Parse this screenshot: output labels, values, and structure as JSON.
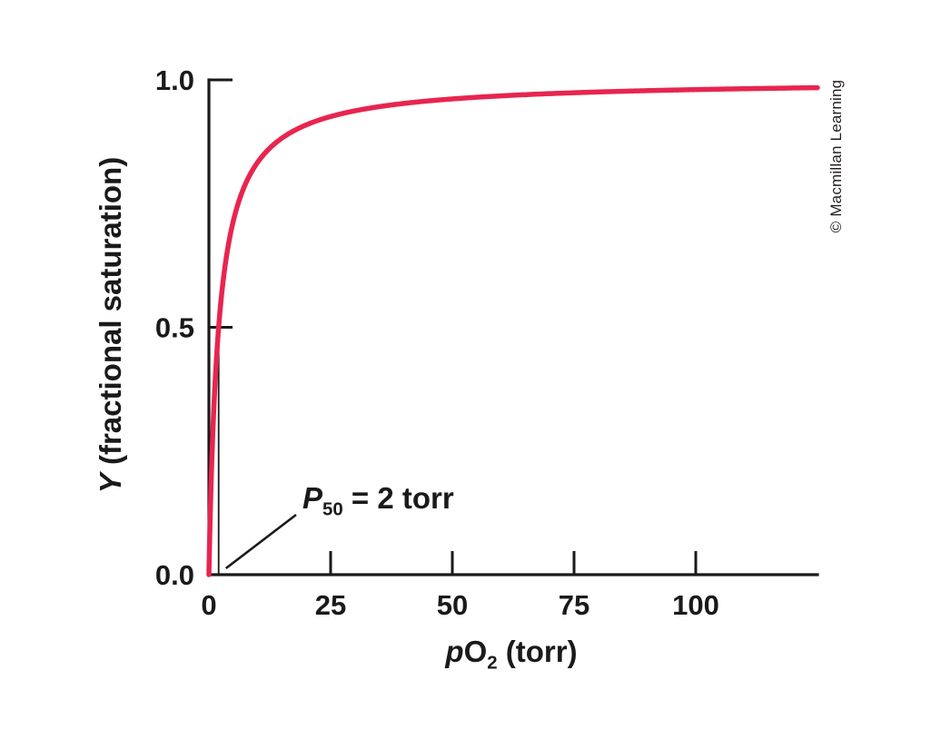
{
  "figure": {
    "credit": "© Macmillan Learning",
    "background": "#ffffff",
    "axis_color": "#1a1a1a",
    "text_color": "#1a1a1a"
  },
  "axes": {
    "y_label_var": "Y",
    "y_label_rest": " (fractional saturation)",
    "x_label_p": "p",
    "x_label_main": "O",
    "x_label_sub": "2",
    "x_label_unit": " (torr)"
  },
  "annotation": {
    "p": "P",
    "sub": "50",
    "rest": " = 2 torr"
  },
  "chart_data": {
    "type": "line",
    "title": "",
    "xlabel": "pO2 (torr)",
    "ylabel": "Y (fractional saturation)",
    "xlim": [
      0,
      125
    ],
    "ylim": [
      0,
      1.0
    ],
    "x_ticks": [
      0,
      25,
      50,
      75,
      100
    ],
    "y_ticks": [
      0.0,
      0.5,
      1.0
    ],
    "y_tick_labels": [
      "0.0",
      "0.5",
      "1.0"
    ],
    "grid": false,
    "legend": false,
    "curve_color": "#e8254f",
    "p50_torr": 2,
    "annotation_text": "P50 = 2 torr",
    "series": [
      {
        "name": "oxygen-binding-curve",
        "x": [
          0,
          1,
          2,
          4,
          6,
          10,
          18,
          25,
          50,
          75,
          100,
          125
        ],
        "y": [
          0,
          0.33,
          0.5,
          0.67,
          0.75,
          0.83,
          0.9,
          0.93,
          0.96,
          0.97,
          0.98,
          0.98
        ]
      }
    ]
  }
}
